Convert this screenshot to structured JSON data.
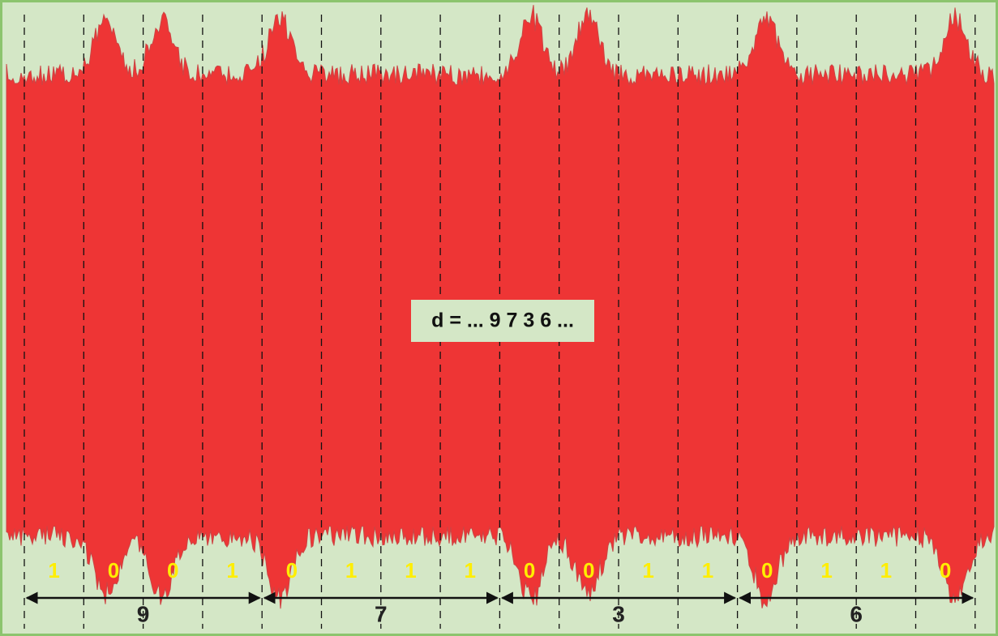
{
  "label": "d = ... 9 7 3 6 ...",
  "groups": [
    {
      "digit": "9",
      "bits": [
        "1",
        "0",
        "0",
        "1"
      ]
    },
    {
      "digit": "7",
      "bits": [
        "0",
        "1",
        "1",
        "1"
      ]
    },
    {
      "digit": "3",
      "bits": [
        "0",
        "0",
        "1",
        "1"
      ]
    },
    {
      "digit": "6",
      "bits": [
        "0",
        "1",
        "1",
        "0"
      ]
    }
  ]
}
